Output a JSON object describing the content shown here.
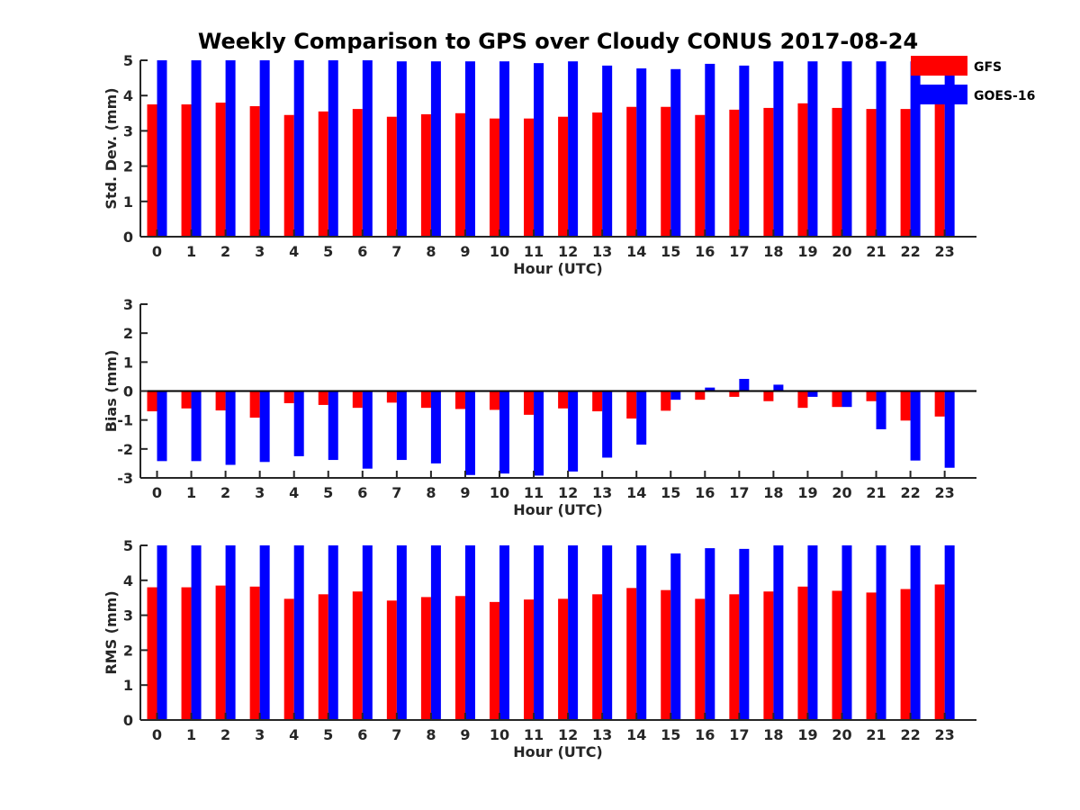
{
  "chart_data": {
    "type": "bar",
    "title": "Weekly Comparison to GPS over Cloudy CONUS 2017-08-24",
    "categories": [
      "0",
      "1",
      "2",
      "3",
      "4",
      "5",
      "6",
      "7",
      "8",
      "9",
      "10",
      "11",
      "12",
      "13",
      "14",
      "15",
      "16",
      "17",
      "18",
      "19",
      "20",
      "21",
      "22",
      "23"
    ],
    "legend": {
      "placement": "top-right",
      "entries": [
        {
          "name": "GFS",
          "color": "#ff0000"
        },
        {
          "name": "GOES-16",
          "color": "#0000ff"
        }
      ]
    },
    "panels": [
      {
        "xlabel": "Hour (UTC)",
        "ylabel": "Std. Dev. (mm)",
        "ylim": [
          0,
          5
        ],
        "yticks": [
          0,
          1,
          2,
          3,
          4,
          5
        ],
        "series": [
          {
            "name": "GFS",
            "color": "#ff0000",
            "values": [
              3.75,
              3.75,
              3.8,
              3.7,
              3.45,
              3.55,
              3.62,
              3.4,
              3.47,
              3.5,
              3.35,
              3.35,
              3.4,
              3.52,
              3.68,
              3.68,
              3.45,
              3.6,
              3.65,
              3.78,
              3.65,
              3.62,
              3.62,
              3.75
            ]
          },
          {
            "name": "GOES-16",
            "color": "#0000ff",
            "values": [
              5,
              5,
              5,
              5,
              5,
              5,
              5,
              4.97,
              4.97,
              4.97,
              4.97,
              4.92,
              4.97,
              4.85,
              4.77,
              4.75,
              4.9,
              4.85,
              4.97,
              4.97,
              4.97,
              4.97,
              4.97,
              4.62
            ]
          }
        ]
      },
      {
        "xlabel": "Hour (UTC)",
        "ylabel": "Bias (mm)",
        "ylim": [
          -3,
          3
        ],
        "yticks": [
          -3,
          -2,
          -1,
          0,
          1,
          2,
          3
        ],
        "zero_line": true,
        "series": [
          {
            "name": "GFS",
            "color": "#ff0000",
            "values": [
              -0.7,
              -0.6,
              -0.67,
              -0.92,
              -0.42,
              -0.48,
              -0.58,
              -0.4,
              -0.58,
              -0.62,
              -0.65,
              -0.82,
              -0.6,
              -0.7,
              -0.95,
              -0.68,
              -0.3,
              -0.2,
              -0.35,
              -0.58,
              -0.55,
              -0.35,
              -1.02,
              -0.88
            ]
          },
          {
            "name": "GOES-16",
            "color": "#0000ff",
            "values": [
              -2.42,
              -2.42,
              -2.55,
              -2.45,
              -2.25,
              -2.38,
              -2.68,
              -2.38,
              -2.5,
              -2.9,
              -2.85,
              -2.92,
              -2.78,
              -2.3,
              -1.85,
              -0.3,
              0.12,
              0.42,
              0.22,
              -0.2,
              -0.55,
              -1.32,
              -2.4,
              -2.65
            ]
          }
        ]
      },
      {
        "xlabel": "Hour (UTC)",
        "ylabel": "RMS (mm)",
        "ylim": [
          0,
          5
        ],
        "yticks": [
          0,
          1,
          2,
          3,
          4,
          5
        ],
        "series": [
          {
            "name": "GFS",
            "color": "#ff0000",
            "values": [
              3.8,
              3.8,
              3.85,
              3.82,
              3.47,
              3.6,
              3.68,
              3.42,
              3.52,
              3.55,
              3.38,
              3.45,
              3.47,
              3.6,
              3.78,
              3.72,
              3.47,
              3.6,
              3.68,
              3.82,
              3.7,
              3.65,
              3.75,
              3.88
            ]
          },
          {
            "name": "GOES-16",
            "color": "#0000ff",
            "values": [
              5,
              5,
              5,
              5,
              5,
              5,
              5,
              5,
              5,
              5,
              5,
              5,
              5,
              5,
              5,
              4.77,
              4.92,
              4.9,
              5,
              5,
              5,
              5,
              5,
              5
            ]
          }
        ]
      }
    ]
  }
}
